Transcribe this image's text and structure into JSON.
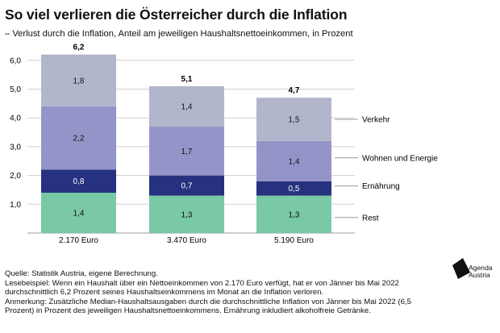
{
  "header": {
    "title": "So viel verlieren die Österreicher durch die Inflation",
    "subtitle": "– Verlust durch die Inflation, Anteil am jeweiligen Haushaltsnettoeinkommen, in Prozent"
  },
  "chart_data": {
    "type": "bar",
    "stacked": true,
    "title": "So viel verlieren die Österreicher durch die Inflation",
    "subtitle": "– Verlust durch die Inflation, Anteil am jeweiligen Haushaltsnettoeinkommen, in Prozent",
    "categories": [
      "2.170 Euro",
      "3.470 Euro",
      "5.190 Euro"
    ],
    "totals": [
      "6,2",
      "5,1",
      "4,7"
    ],
    "series": [
      {
        "name": "Rest",
        "values": [
          1.4,
          1.3,
          1.3
        ],
        "labels": [
          "1,4",
          "1,3",
          "1,3"
        ],
        "color": "#79c8a6",
        "text_color": "#111111"
      },
      {
        "name": "Ernährung",
        "values": [
          0.8,
          0.7,
          0.5
        ],
        "labels": [
          "0,8",
          "0,7",
          "0,5"
        ],
        "color": "#26327f",
        "text_color": "#ffffff"
      },
      {
        "name": "Wohnen und Energie",
        "values": [
          2.2,
          1.7,
          1.4
        ],
        "labels": [
          "2,2",
          "1,7",
          "1,4"
        ],
        "color": "#9594c9",
        "text_color": "#111111"
      },
      {
        "name": "Verkehr",
        "values": [
          1.8,
          1.4,
          1.5
        ],
        "labels": [
          "1,8",
          "1,4",
          "1,5"
        ],
        "color": "#b1b6cc",
        "text_color": "#111111"
      }
    ],
    "y_ticks": [
      1.0,
      2.0,
      3.0,
      4.0,
      5.0,
      6.0
    ],
    "y_tick_labels": [
      "1,0",
      "2,0",
      "3,0",
      "4,0",
      "5,0",
      "6,0"
    ],
    "ylim": [
      0,
      6.5
    ],
    "xlabel": "",
    "ylabel": "",
    "grid": true,
    "legend": "right, labels aligned to segments of the last bar"
  },
  "footer": {
    "source": "Quelle: Statistik Austria, eigene Berechnung.",
    "example": "Lesebeispiel: Wenn ein Haushalt über ein Nettoeinkommen von 2.170 Euro verfügt, hat er von Jänner bis Mai 2022 durchschnittlich 6,2 Prozent seines Haushaltseinkommens im Monat an die Inflation verloren.",
    "note": "Anmerkung: Zusätzliche Median-Haushaltsausgaben durch die durchschnittliche Inflation von Jänner bis Mai 2022 (6,5 Prozent) in Prozent des jeweiligen Haushaltsnettoeinkommens. Ernährung inkludiert alkoholfreie Getränke."
  },
  "logo": {
    "line1": "Agenda",
    "line2": "Austria"
  }
}
